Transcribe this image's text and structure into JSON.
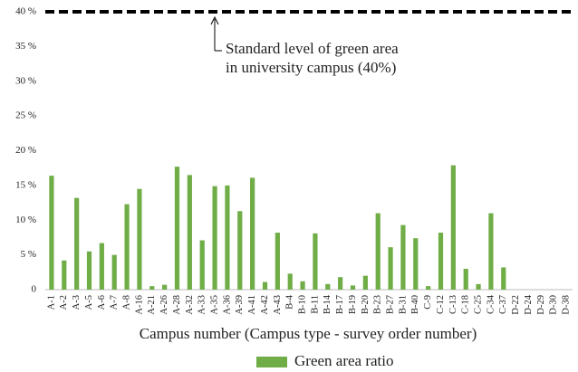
{
  "chart_data": {
    "type": "bar",
    "x_label": "Campus number (Campus type - survey order number)",
    "categories": [
      "A-1",
      "A-2",
      "A-3",
      "A-5",
      "A-6",
      "A-7",
      "A-8",
      "A-16",
      "A-21",
      "A-26",
      "A-28",
      "A-32",
      "A-33",
      "A-35",
      "A-36",
      "A-39",
      "A-41",
      "A-42",
      "A-43",
      "B-4",
      "B-10",
      "B-11",
      "B-14",
      "B-17",
      "B-19",
      "B-20",
      "B-23",
      "B-27",
      "B-31",
      "B-40",
      "C-9",
      "C-12",
      "C-13",
      "C-18",
      "C-25",
      "C-34",
      "C-37",
      "D-22",
      "D-24",
      "D-29",
      "D-30",
      "D-38"
    ],
    "series": [
      {
        "name": "Green area ratio",
        "color": "#70ad47",
        "values": [
          16.4,
          4.2,
          13.2,
          5.5,
          6.7,
          5.0,
          12.3,
          14.5,
          0.5,
          0.7,
          17.7,
          16.5,
          7.1,
          14.9,
          15.0,
          11.3,
          16.1,
          1.1,
          8.2,
          2.3,
          1.2,
          8.1,
          0.8,
          1.8,
          0.6,
          2.0,
          11.0,
          6.1,
          9.3,
          7.4,
          0.5,
          8.2,
          17.9,
          3.0,
          0.8,
          11.0,
          3.2,
          0,
          0,
          0,
          0,
          0
        ]
      }
    ],
    "ylim": [
      0,
      40
    ],
    "yticks": [
      {
        "value": 0,
        "label": "0"
      },
      {
        "value": 5,
        "label": "5 %"
      },
      {
        "value": 10,
        "label": "10 %"
      },
      {
        "value": 15,
        "label": "15 %"
      },
      {
        "value": 20,
        "label": "20 %"
      },
      {
        "value": 25,
        "label": "25 %"
      },
      {
        "value": 30,
        "label": "30 %"
      },
      {
        "value": 35,
        "label": "35 %"
      },
      {
        "value": 40,
        "label": "40 %"
      }
    ],
    "reference_line": {
      "value": 40,
      "color": "#000000"
    },
    "annotation": [
      "Standard level of green area",
      "in university campus  (40%)"
    ],
    "legend": "bottom"
  }
}
